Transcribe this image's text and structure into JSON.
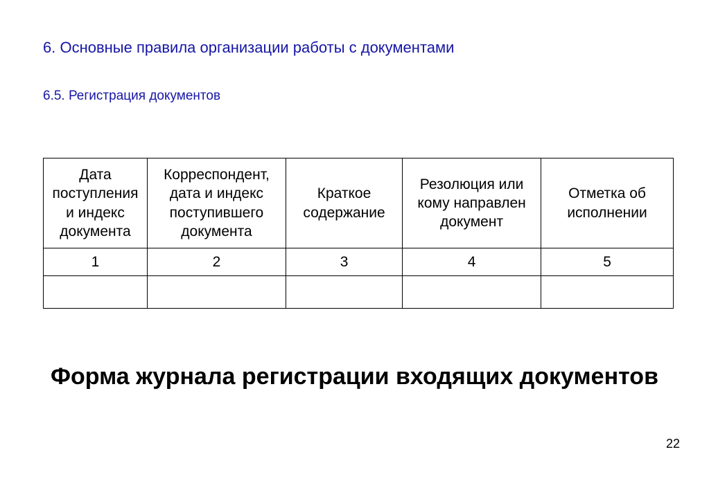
{
  "heading": "6. Основные правила организации работы с документами",
  "subheading": "6.5. Регистрация документов",
  "table": {
    "type": "table",
    "border_color": "#000000",
    "background_color": "#ffffff",
    "text_color": "#000000",
    "header_fontsize": 21,
    "col_widths_percent": [
      16.5,
      22,
      18.5,
      22,
      21
    ],
    "columns": [
      "Дата поступления и индекс документа",
      "Корреспондент, дата и индекс поступившего документа",
      "Краткое содержание",
      "Резолюция или кому направлен документ",
      "Отметка об исполнении"
    ],
    "number_row": [
      "1",
      "2",
      "3",
      "4",
      "5"
    ],
    "empty_row": [
      "",
      "",
      "",
      "",
      ""
    ]
  },
  "caption": "Форма журнала регистрации входящих документов",
  "page_number": "22",
  "colors": {
    "heading_color": "#1616a6",
    "background": "#ffffff"
  },
  "typography": {
    "heading_fontsize": 22,
    "subheading_fontsize": 19,
    "caption_fontsize": 34,
    "caption_weight": "bold",
    "font_family": "Arial"
  }
}
